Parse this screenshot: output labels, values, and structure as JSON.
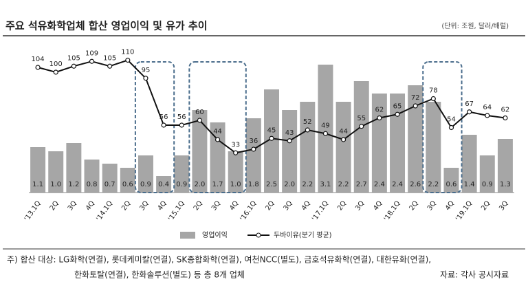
{
  "chart_data": {
    "type": "bar",
    "title": "주요 석유화학업체 합산 영업이익 및 유가 추이",
    "subtitle": "(단위: 조원, 달러/배럴)",
    "categories": [
      "'13.1Q",
      "2Q",
      "3Q",
      "4Q",
      "'14.1Q",
      "2Q",
      "3Q",
      "4Q",
      "'15.1Q",
      "2Q",
      "3Q",
      "4Q",
      "'16.1Q",
      "2Q",
      "3Q",
      "4Q",
      "'17.1Q",
      "2Q",
      "3Q",
      "4Q",
      "'18.1Q",
      "2Q",
      "3Q",
      "4Q",
      "'19.1Q",
      "2Q",
      "3Q"
    ],
    "series": [
      {
        "name": "영업이익",
        "type": "bar",
        "color": "#a6a6a6",
        "values": [
          1.1,
          1.0,
          1.2,
          0.8,
          0.7,
          0.6,
          0.9,
          0.4,
          0.9,
          2.0,
          1.7,
          1.0,
          1.8,
          2.5,
          2.0,
          2.2,
          3.1,
          2.2,
          2.7,
          2.4,
          2.4,
          2.6,
          2.2,
          0.6,
          1.4,
          0.9,
          1.3
        ],
        "value_labels": [
          "1.1",
          "1.0",
          "1.2",
          "0.8",
          "0.7",
          "0.6",
          "0.9",
          "0.4",
          "0.9",
          "2.0",
          "1.7",
          "1.0",
          "1.8",
          "2.5",
          "2.0",
          "2.2",
          "3.1",
          "2.2",
          "2.7",
          "2.4",
          "2.4",
          "2.6",
          "2.2",
          "0.6",
          "1.4",
          "0.9",
          "1.3"
        ]
      },
      {
        "name": "두바이유(분기 평균)",
        "type": "line",
        "axis": "y2",
        "color": "#111111",
        "values": [
          104,
          100,
          105,
          109,
          105,
          110,
          95,
          56,
          56,
          60,
          44,
          33,
          36,
          45,
          43,
          52,
          49,
          44,
          55,
          62,
          65,
          72,
          78,
          54,
          67,
          64,
          62
        ]
      }
    ],
    "ylim": [
      0,
      3.5
    ],
    "y2lim": [
      0,
      120
    ],
    "footnote": [
      "주) 합산 대상: LG화학(연결), 롯데케미칼(연결), SK종합화학(연결), 여천NCC(별도), 금호석유화학(연결), 대한유화(연결),",
      "한화토탈(연결), 한화솔루션(별도) 등 총 8개 업체"
    ],
    "source": "자료: 각사 공시자료"
  }
}
